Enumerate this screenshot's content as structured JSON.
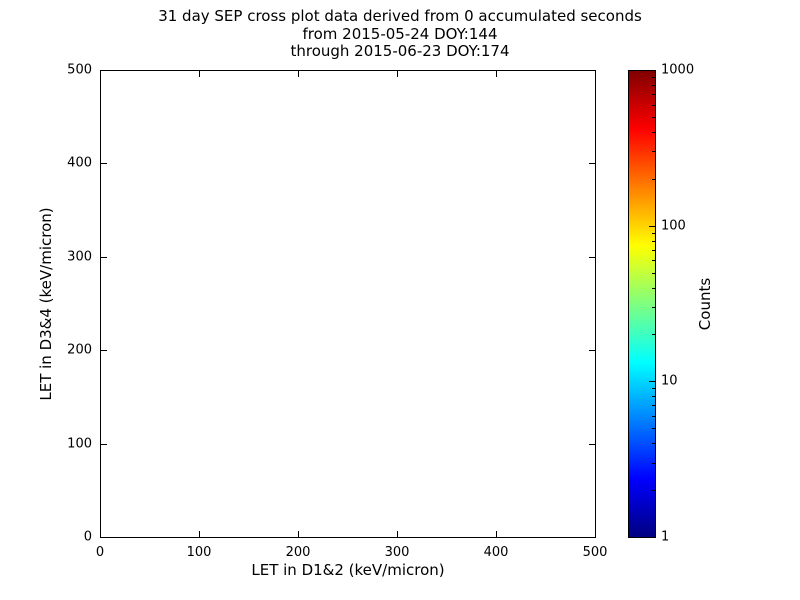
{
  "figure": {
    "background": "#ffffff",
    "axes_color": "#000000"
  },
  "chart_data": {
    "type": "heatmap",
    "title": "31 day SEP cross plot data derived from 0 accumulated seconds",
    "title_lines": [
      "31 day SEP cross plot data derived from 0 accumulated seconds",
      "from 2015-05-24 DOY:144",
      "through 2015-06-23 DOY:174"
    ],
    "xlabel": "LET in D1&2 (keV/micron)",
    "ylabel": "LET in D3&4 (keV/micron)",
    "xlim": [
      0,
      500
    ],
    "ylim": [
      0,
      500
    ],
    "x_ticks": [
      0,
      100,
      200,
      300,
      400,
      500
    ],
    "y_ticks": [
      0,
      100,
      200,
      300,
      400,
      500
    ],
    "grid": false,
    "points": [],
    "colorbar": {
      "label": "Counts",
      "scale": "log",
      "range": [
        1,
        1000
      ],
      "ticks": [
        1,
        10,
        100,
        1000
      ],
      "colormap": "jet",
      "colormap_stops": [
        "#000080",
        "#0000ff",
        "#00ffff",
        "#7fff7f",
        "#ffff00",
        "#ff0000",
        "#800000"
      ]
    }
  }
}
